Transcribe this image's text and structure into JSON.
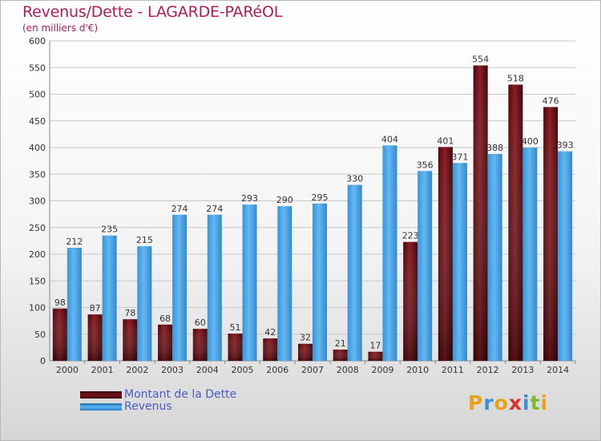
{
  "chart_data": {
    "type": "bar",
    "title": "Revenus/Dette - LAGARDE-PARéOL",
    "subtitle": "(en milliers d'€)",
    "xlabel": "",
    "ylabel": "",
    "ylim": [
      0,
      600
    ],
    "yticks": [
      "0",
      "50",
      "100",
      "150",
      "200",
      "250",
      "300",
      "350",
      "400",
      "450",
      "500",
      "550",
      "600"
    ],
    "grid": true,
    "legend_position": "bottom-left",
    "categories": [
      "2000",
      "2001",
      "2002",
      "2003",
      "2004",
      "2005",
      "2006",
      "2007",
      "2008",
      "2009",
      "2010",
      "2011",
      "2012",
      "2013",
      "2014"
    ],
    "series": [
      {
        "name": "Montant de la Dette",
        "color": "#7a1218",
        "values": [
          98,
          87,
          78,
          68,
          60,
          51,
          42,
          32,
          21,
          17,
          223,
          401,
          554,
          518,
          476
        ]
      },
      {
        "name": "Revenus",
        "color": "#4ca6e6",
        "values": [
          212,
          235,
          215,
          274,
          274,
          293,
          290,
          295,
          330,
          404,
          356,
          371,
          388,
          400,
          393
        ]
      }
    ]
  },
  "legend": {
    "items": [
      {
        "label": "Montant de la Dette",
        "color": "#7a1218"
      },
      {
        "label": "Revenus",
        "color": "#4ca6e6"
      }
    ]
  },
  "brand": {
    "text": "Proxiti",
    "colors": [
      "#e8a21a",
      "#3b8fd6",
      "#e8a21a",
      "#d8322f",
      "#3b8fd6",
      "#7dbb2e",
      "#e8a21a"
    ]
  }
}
